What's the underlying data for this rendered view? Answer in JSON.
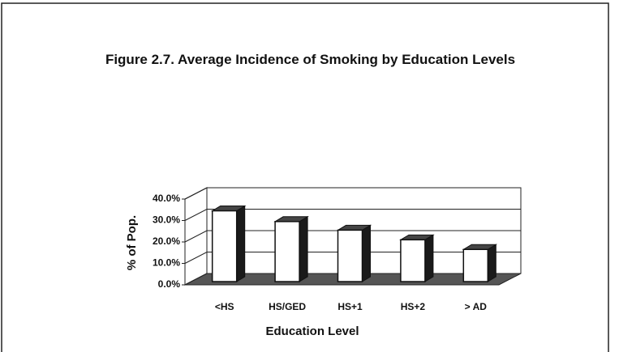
{
  "chart_data": {
    "type": "bar3d",
    "title": "Figure 2.7. Average Incidence of Smoking by Education Levels",
    "xlabel": "Education Level",
    "ylabel": "% of Pop.",
    "categories": [
      "<HS",
      "HS/GED",
      "HS+1",
      "HS+2",
      "> AD"
    ],
    "values": [
      33,
      28,
      24,
      19.5,
      15
    ],
    "ylim": [
      0,
      40
    ],
    "yticks": [
      {
        "value": 0,
        "label": "0.0%"
      },
      {
        "value": 10,
        "label": "10.0%"
      },
      {
        "value": 20,
        "label": "20.0%"
      },
      {
        "value": 30,
        "label": "30.0%"
      },
      {
        "value": 40,
        "label": "40.0%"
      }
    ],
    "grid": true
  }
}
